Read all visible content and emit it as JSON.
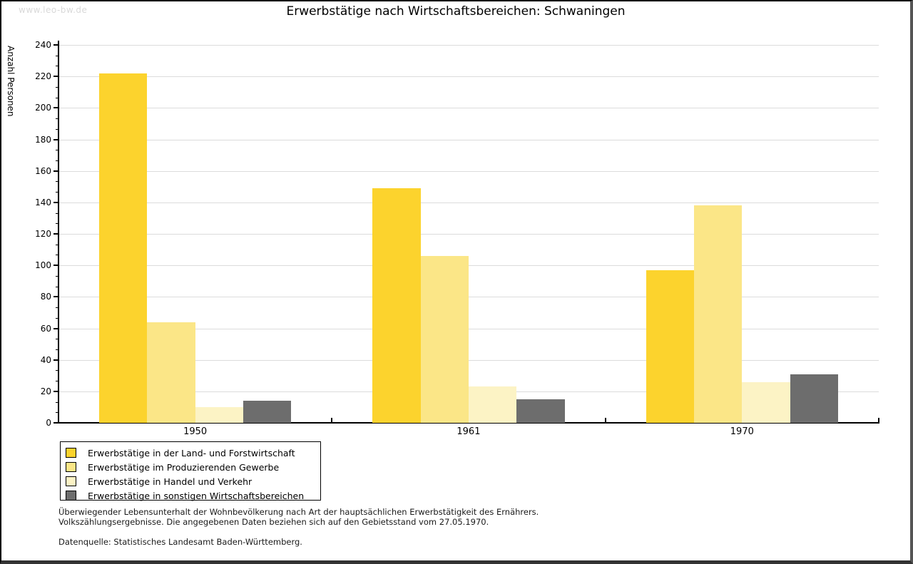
{
  "watermark": "www.leo-bw.de",
  "title": "Erwerbstätige nach Wirtschaftsbereichen: Schwaningen",
  "chart_data": {
    "type": "bar",
    "title": "Erwerbstätige nach Wirtschaftsbereichen: Schwaningen",
    "xlabel": "",
    "ylabel": "Anzahl Personen",
    "categories": [
      "1950",
      "1961",
      "1970"
    ],
    "series": [
      {
        "name": "Erwerbstätige in der Land- und Forstwirtschaft",
        "color": "#FCD32D",
        "values": [
          222,
          149,
          97
        ]
      },
      {
        "name": "Erwerbstätige im Produzierenden Gewerbe",
        "color": "#FBE687",
        "values": [
          64,
          106,
          138
        ]
      },
      {
        "name": "Erwerbstätige in Handel und Verkehr",
        "color": "#FCF3C5",
        "values": [
          10,
          23,
          26
        ]
      },
      {
        "name": "Erwerbstätige in sonstigen Wirtschaftsbereichen",
        "color": "#6D6D6D",
        "values": [
          14,
          15,
          31
        ]
      }
    ],
    "ylim": [
      0,
      240
    ],
    "ytick_step": 20,
    "minor_ticks_per_interval": 2,
    "grid": "horizontal",
    "legend_position": "bottom-left"
  },
  "footnotes": {
    "line1": "Überwiegender Lebensunterhalt der Wohnbevölkerung nach Art der hauptsächlichen Erwerbstätigkeit des Ernährers.",
    "line2": "Volkszählungsergebnisse. Die angegebenen Daten beziehen sich auf den Gebietsstand vom 27.05.1970.",
    "source": "Datenquelle: Statistisches Landesamt Baden-Württemberg."
  },
  "colors": {
    "grid": "#dcdcdc",
    "axis": "#000000",
    "watermark": "#d9d9d9"
  }
}
